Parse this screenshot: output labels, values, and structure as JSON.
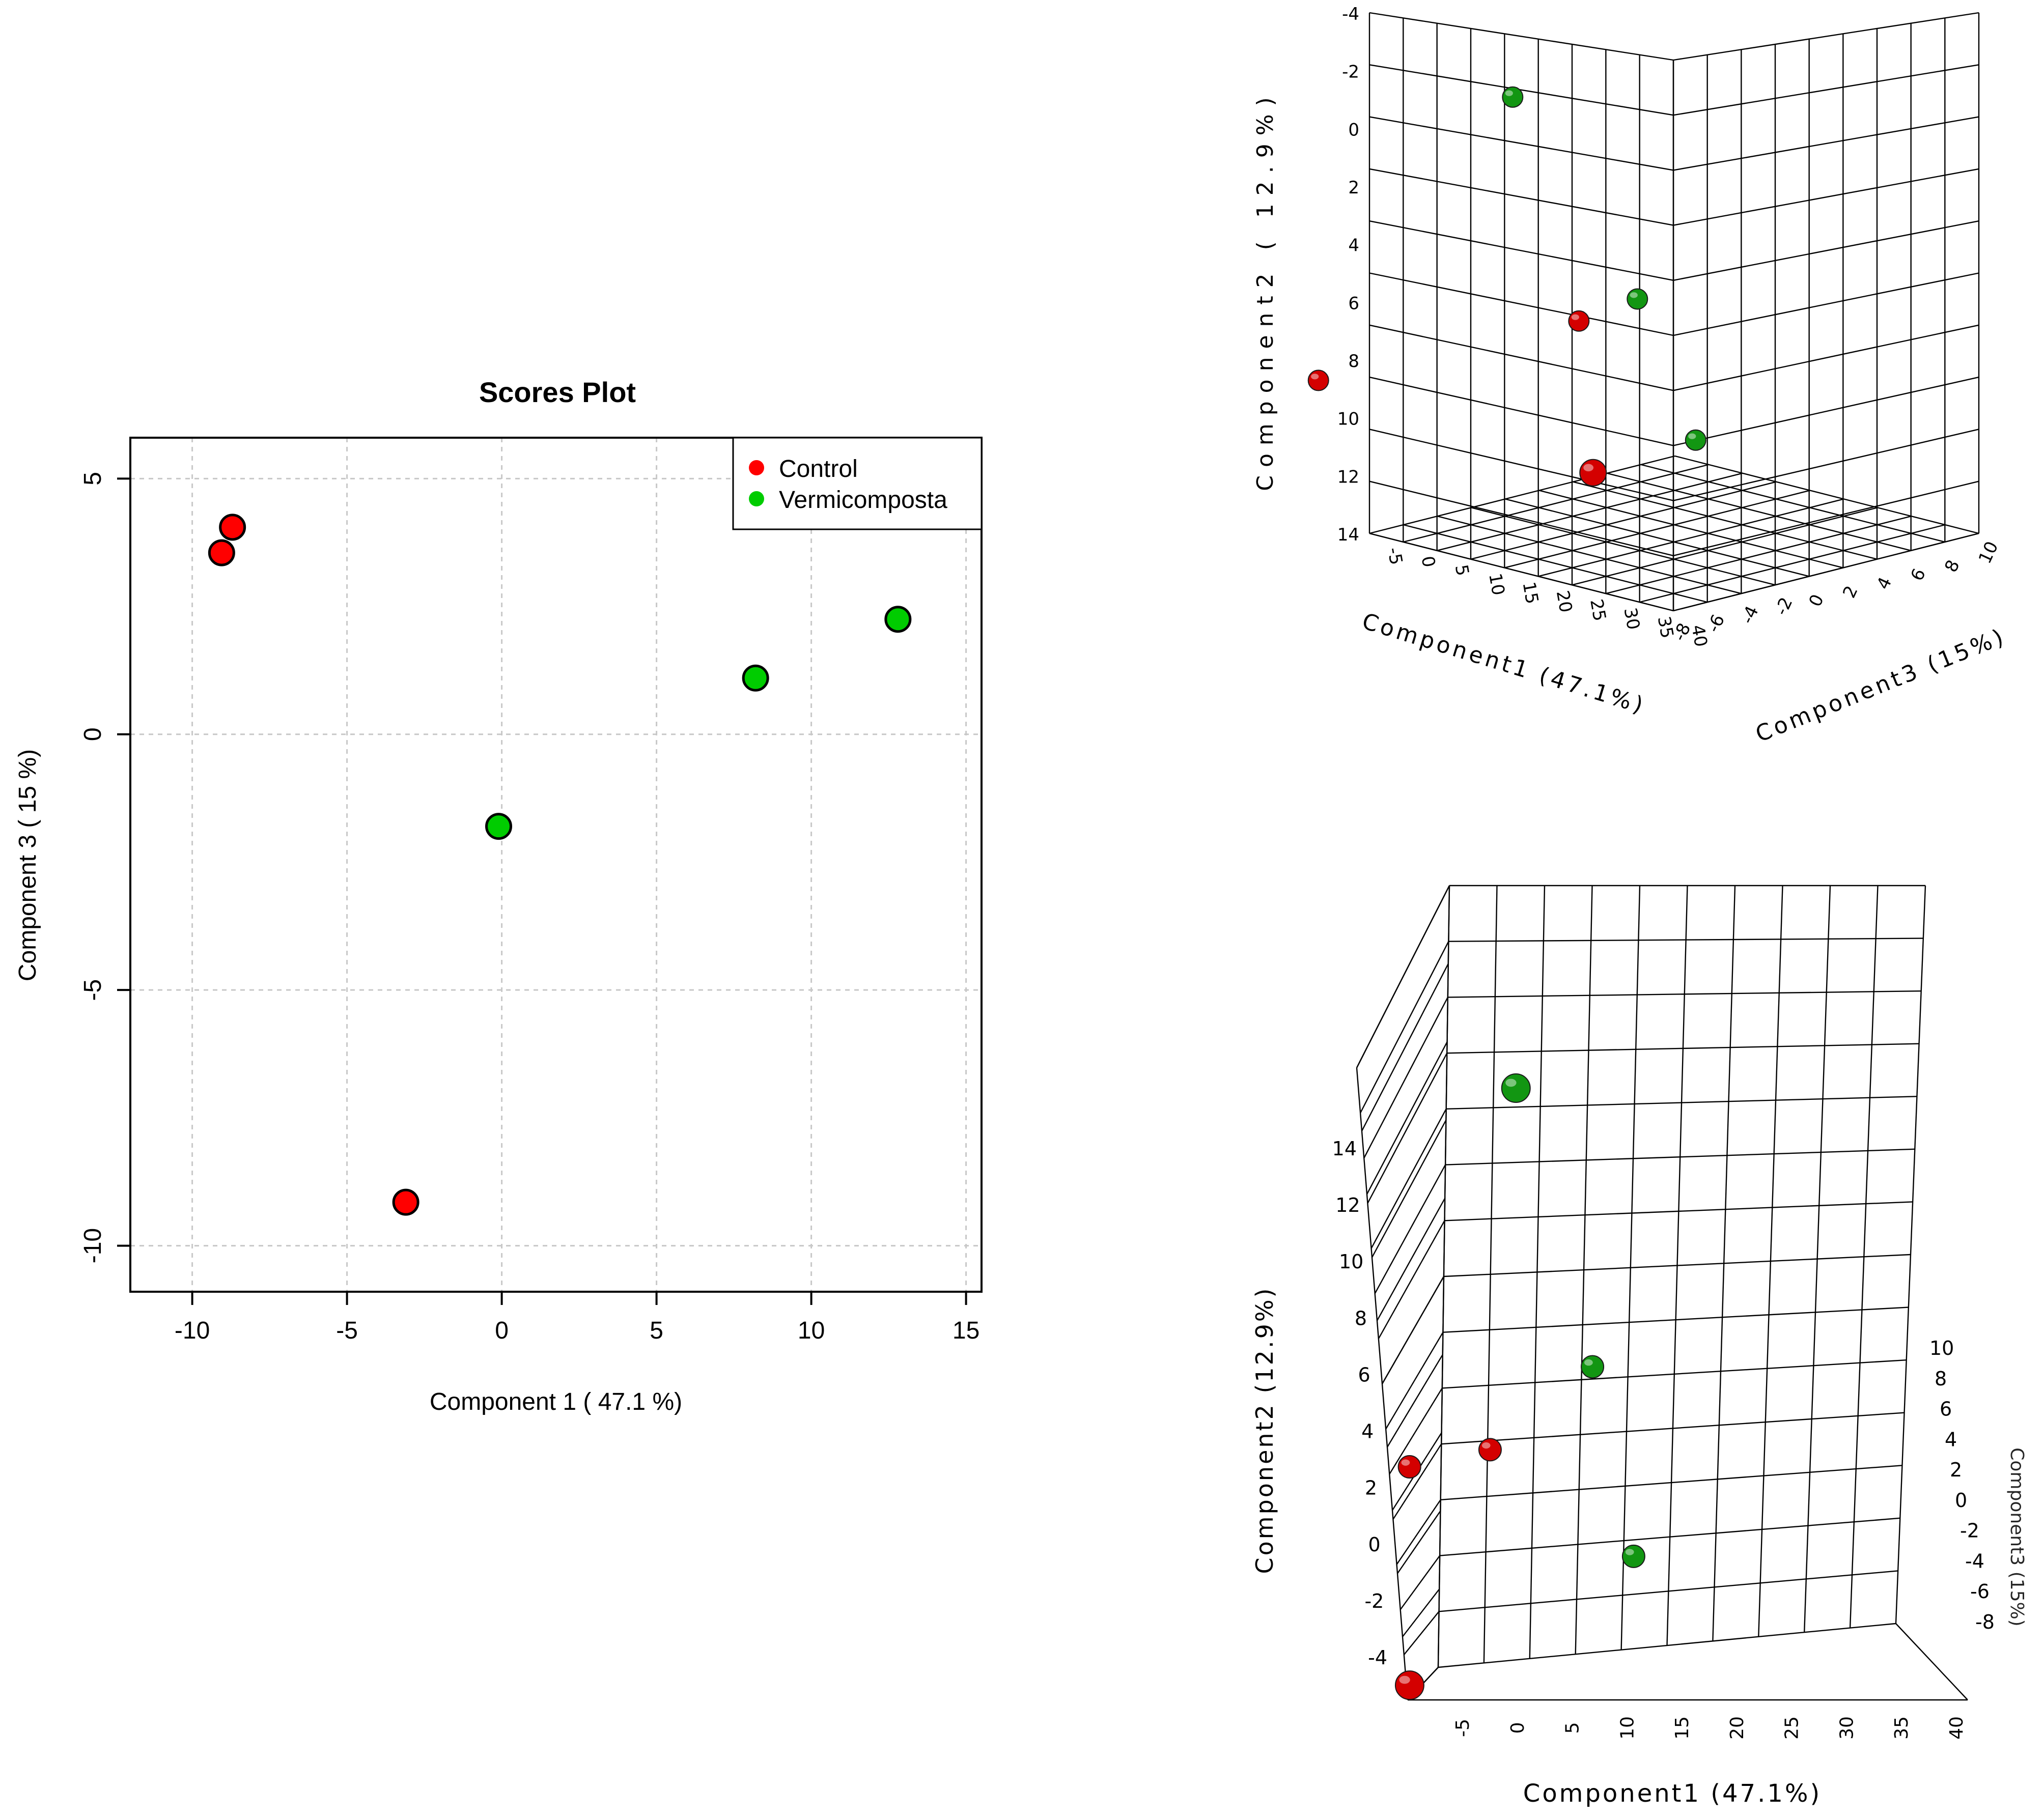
{
  "colors": {
    "control": "#ff0000",
    "vermicomposta": "#00cc00",
    "control_3d": "#d40000",
    "vermicomposta_3d": "#129612",
    "grid": "#c8c8c8"
  },
  "chart_data": [
    {
      "type": "scatter",
      "title": "Scores Plot",
      "xlabel": "Component 1 ( 47.1 %)",
      "ylabel": "Component 3 ( 15 %)",
      "xlim": [
        -12,
        15.5
      ],
      "ylim": [
        -10.9,
        5.8
      ],
      "xticks": [
        -10,
        -5,
        0,
        5,
        10,
        15
      ],
      "yticks": [
        5,
        0,
        -5,
        -10
      ],
      "grid": true,
      "legend_position": "top-right",
      "series": [
        {
          "name": "Control",
          "points": [
            [
              -8.7,
              4.05
            ],
            [
              -9.05,
              3.55
            ],
            [
              -3.1,
              -9.15
            ]
          ]
        },
        {
          "name": "Vermicomposta",
          "points": [
            [
              -0.1,
              -1.8
            ],
            [
              8.2,
              1.1
            ],
            [
              12.8,
              2.25
            ]
          ]
        }
      ]
    },
    {
      "type": "scatter",
      "title": "",
      "view": "3d-corner",
      "xlabel": "Component1 (47.1%)",
      "ylabel": "Component2 ( 12.9%)",
      "zlabel": "Component3 (15%)",
      "xticks": [
        -5,
        0,
        5,
        10,
        15,
        20,
        25,
        30,
        35,
        40
      ],
      "yticks": [
        -4,
        -2,
        0,
        2,
        4,
        6,
        8,
        10,
        12,
        14
      ],
      "zticks": [
        -8,
        -6,
        -4,
        -2,
        0,
        2,
        4,
        6,
        8,
        10
      ],
      "series": [
        {
          "name": "Control",
          "points": [
            [
              -8.7,
              -4,
              4.05
            ],
            [
              -9.05,
              1,
              3.55
            ],
            [
              -3.1,
              1,
              -9.15
            ]
          ]
        },
        {
          "name": "Vermicomposta",
          "points": [
            [
              -0.1,
              9.5,
              -1.8
            ],
            [
              8.2,
              3,
              1.1
            ],
            [
              12.8,
              -1.5,
              2.25
            ]
          ]
        }
      ]
    },
    {
      "type": "scatter",
      "title": "",
      "view": "3d-front",
      "xlabel": "Component1 (47.1%)",
      "ylabel": "Component2 (12.9%)",
      "zlabel": "Component3 (15%)",
      "xticks": [
        -5,
        0,
        5,
        10,
        15,
        20,
        25,
        30,
        35,
        40
      ],
      "yticks": [
        -4,
        -2,
        0,
        2,
        4,
        6,
        8,
        10,
        12,
        14
      ],
      "zticks": [
        10,
        8,
        6,
        4,
        2,
        0,
        -2,
        -4,
        -6,
        -8
      ],
      "series": [
        {
          "name": "Control",
          "points": [
            [
              -8.7,
              -4,
              4.05
            ],
            [
              -9.05,
              1,
              3.55
            ],
            [
              -3.1,
              1,
              -9.15
            ]
          ]
        },
        {
          "name": "Vermicomposta",
          "points": [
            [
              -0.1,
              9.5,
              -1.8
            ],
            [
              8.2,
              3,
              1.1
            ],
            [
              12.8,
              -1.5,
              2.25
            ]
          ]
        }
      ]
    }
  ]
}
